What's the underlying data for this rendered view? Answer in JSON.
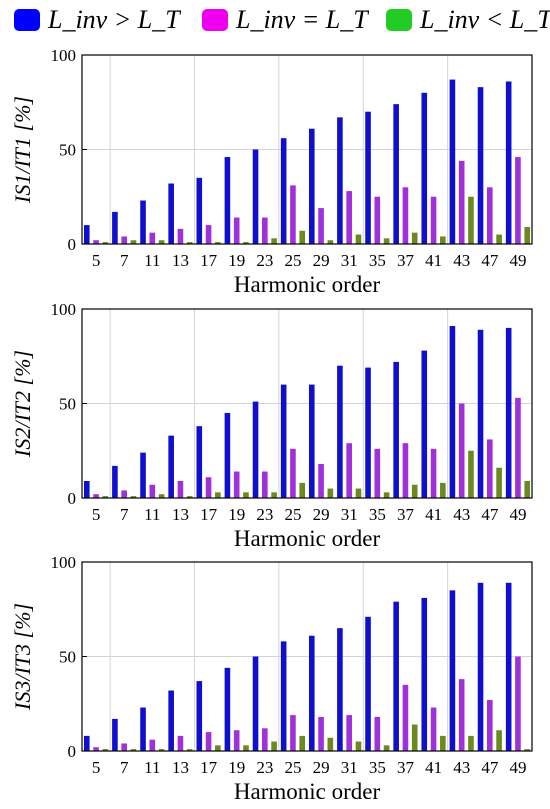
{
  "legend": {
    "entries": [
      {
        "label": "L_inv > L_T",
        "color": "#0000ff"
      },
      {
        "label": "L_inv = L_T",
        "color": "#ee00ee"
      },
      {
        "label": "L_inv < L_T",
        "color": "#22cc22"
      }
    ]
  },
  "chart_data": [
    {
      "type": "bar",
      "ylabel": "IS1/IT1 [%]",
      "xlabel": "Harmonic order",
      "ylim": [
        0,
        100
      ],
      "yticks": [
        0,
        50,
        100
      ],
      "grid": true,
      "categories": [
        "5",
        "7",
        "11",
        "13",
        "17",
        "19",
        "23",
        "25",
        "29",
        "31",
        "35",
        "37",
        "41",
        "43",
        "47",
        "49"
      ],
      "series": [
        {
          "name": "L_inv > L_T",
          "color": "#1010cc",
          "values": [
            10,
            17,
            23,
            32,
            35,
            46,
            50,
            56,
            61,
            67,
            70,
            74,
            80,
            87,
            83,
            86
          ]
        },
        {
          "name": "L_inv = L_T",
          "color": "#a030d8",
          "values": [
            2,
            4,
            6,
            8,
            10,
            14,
            14,
            31,
            19,
            28,
            25,
            30,
            25,
            44,
            30,
            46
          ]
        },
        {
          "name": "L_inv < L_T",
          "color": "#6a8a20",
          "values": [
            1,
            2,
            2,
            1,
            1,
            1,
            3,
            7,
            2,
            5,
            3,
            6,
            4,
            25,
            5,
            9
          ]
        }
      ]
    },
    {
      "type": "bar",
      "ylabel": "IS2/IT2 [%]",
      "xlabel": "Harmonic order",
      "ylim": [
        0,
        100
      ],
      "yticks": [
        0,
        50,
        100
      ],
      "grid": true,
      "categories": [
        "5",
        "7",
        "11",
        "13",
        "17",
        "19",
        "23",
        "25",
        "29",
        "31",
        "35",
        "37",
        "41",
        "43",
        "47",
        "49"
      ],
      "series": [
        {
          "name": "L_inv > L_T",
          "color": "#1010cc",
          "values": [
            9,
            17,
            24,
            33,
            38,
            45,
            51,
            60,
            60,
            70,
            69,
            72,
            78,
            91,
            89,
            90
          ]
        },
        {
          "name": "L_inv = L_T",
          "color": "#a030d8",
          "values": [
            2,
            4,
            7,
            9,
            11,
            14,
            14,
            26,
            18,
            29,
            26,
            29,
            26,
            50,
            31,
            53
          ]
        },
        {
          "name": "L_inv < L_T",
          "color": "#6a8a20",
          "values": [
            1,
            1,
            2,
            1,
            3,
            3,
            3,
            8,
            5,
            5,
            3,
            7,
            8,
            25,
            16,
            9
          ]
        }
      ]
    },
    {
      "type": "bar",
      "ylabel": "IS3/IT3 [%]",
      "xlabel": "Harmonic order",
      "ylim": [
        0,
        100
      ],
      "yticks": [
        0,
        50,
        100
      ],
      "grid": true,
      "categories": [
        "5",
        "7",
        "11",
        "13",
        "17",
        "19",
        "23",
        "25",
        "29",
        "31",
        "35",
        "37",
        "41",
        "43",
        "47",
        "49"
      ],
      "series": [
        {
          "name": "L_inv > L_T",
          "color": "#1010cc",
          "values": [
            8,
            17,
            23,
            32,
            37,
            44,
            50,
            58,
            61,
            65,
            71,
            79,
            81,
            85,
            89,
            89
          ]
        },
        {
          "name": "L_inv = L_T",
          "color": "#a030d8",
          "values": [
            2,
            4,
            6,
            8,
            10,
            11,
            12,
            19,
            18,
            19,
            18,
            35,
            23,
            38,
            27,
            50
          ]
        },
        {
          "name": "L_inv < L_T",
          "color": "#6a8a20",
          "values": [
            1,
            1,
            1,
            1,
            3,
            3,
            5,
            8,
            7,
            5,
            3,
            14,
            8,
            8,
            11,
            1
          ]
        }
      ]
    }
  ]
}
